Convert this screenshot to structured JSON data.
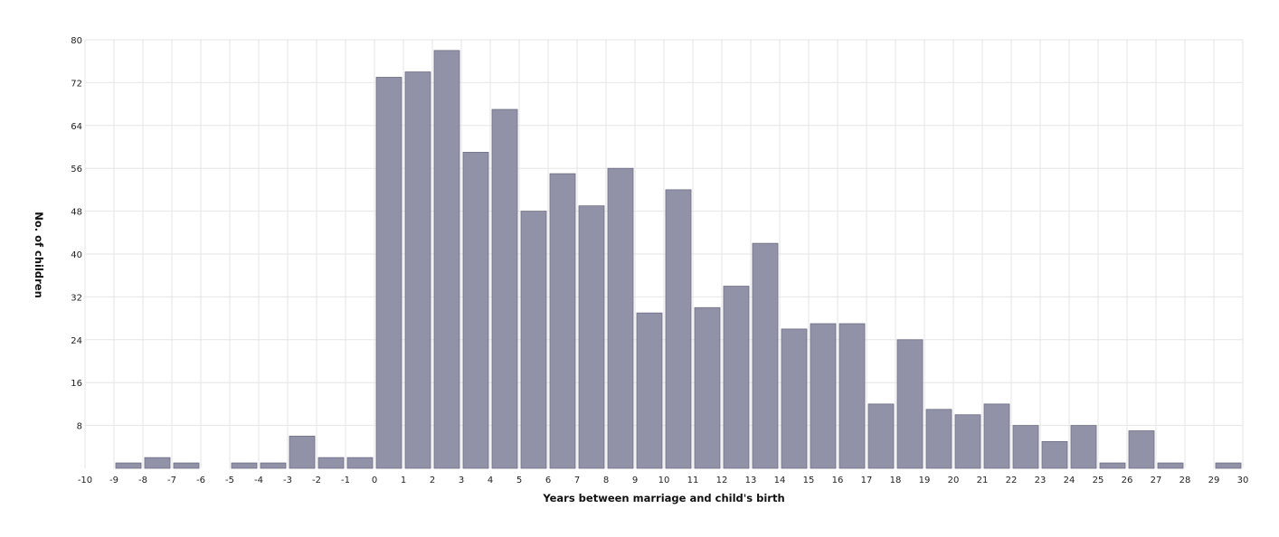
{
  "chart_data": {
    "type": "bar",
    "title": "",
    "xlabel": "Years between marriage and child's birth",
    "ylabel": "No. of children",
    "xlim": [
      -10,
      30
    ],
    "ylim": [
      0,
      80
    ],
    "x_ticks": [
      -10,
      -9,
      -8,
      -7,
      -6,
      -5,
      -4,
      -3,
      -2,
      -1,
      0,
      1,
      2,
      3,
      4,
      5,
      6,
      7,
      8,
      9,
      10,
      11,
      12,
      13,
      14,
      15,
      16,
      17,
      18,
      19,
      20,
      21,
      22,
      23,
      24,
      25,
      26,
      27,
      28,
      29,
      30
    ],
    "y_ticks": [
      8,
      16,
      24,
      32,
      40,
      48,
      56,
      64,
      72,
      80
    ],
    "grid": true,
    "bar_color": "#9192a8",
    "x": [
      -9,
      -8,
      -7,
      -5,
      -4,
      -3,
      -2,
      -1,
      0,
      1,
      2,
      3,
      4,
      5,
      6,
      7,
      8,
      9,
      10,
      11,
      12,
      13,
      14,
      15,
      16,
      17,
      18,
      19,
      20,
      21,
      22,
      23,
      24,
      25,
      26,
      27,
      29
    ],
    "values": [
      1,
      2,
      1,
      1,
      1,
      6,
      2,
      2,
      73,
      74,
      78,
      59,
      67,
      48,
      55,
      49,
      56,
      29,
      52,
      30,
      34,
      42,
      26,
      27,
      27,
      12,
      24,
      11,
      10,
      12,
      8,
      5,
      8,
      1,
      7,
      1,
      1
    ]
  }
}
